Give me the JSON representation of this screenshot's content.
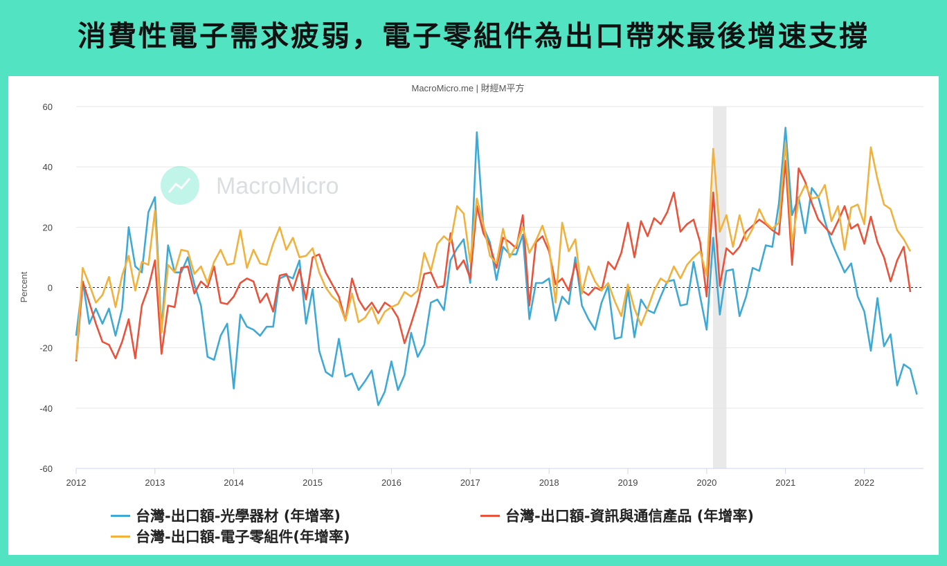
{
  "headline": "消費性電子需求疲弱，電子零組件為出口帶來最後增速支撐",
  "source": "MacroMicro.me | 財經M平方",
  "watermark": "MacroMicro",
  "chart_data": {
    "type": "line",
    "ylabel": "Percent",
    "ylim": [
      -60,
      60
    ],
    "yticks": [
      -60,
      -40,
      -20,
      0,
      20,
      40,
      60
    ],
    "xlim": [
      2012.0,
      2022.75
    ],
    "xticks": [
      "2012",
      "2013",
      "2014",
      "2015",
      "2016",
      "2017",
      "2018",
      "2019",
      "2020",
      "2021",
      "2022"
    ],
    "zero_line": "dashed",
    "shaded_period": [
      2020.08,
      2020.25
    ],
    "legend_position": "bottom",
    "series": [
      {
        "name": "台灣-出口額-光學器材 (年增率)",
        "color": "#3fa9d6",
        "x_start": 2012.0,
        "x_step": 0.08333,
        "values": [
          -16,
          2,
          -12,
          -7,
          -12,
          -7,
          -16,
          -7,
          20,
          7,
          5,
          25,
          30,
          -14,
          14,
          5,
          5,
          10,
          1,
          -6,
          -23,
          -24,
          -16,
          -12,
          -33.5,
          -9,
          -13,
          -14,
          -16,
          -13,
          -13,
          3,
          4,
          3,
          9,
          -12,
          -0.5,
          -21,
          -28,
          -29.5,
          -17,
          -29.5,
          -28.5,
          -34,
          -31,
          -27.5,
          -39,
          -34.5,
          -24.5,
          -34,
          -29,
          -15,
          -23,
          -19,
          -5,
          -4,
          -7.5,
          9,
          13,
          16,
          1.5,
          51.5,
          20,
          15,
          2.5,
          13.5,
          11,
          11,
          17.5,
          -10.5,
          1.5,
          1.5,
          3,
          -11,
          -3,
          -5.5,
          10,
          -6,
          -10.5,
          -14,
          -5,
          0.5,
          -17,
          -16.5,
          -0.5,
          -16.5,
          -4,
          -7.5,
          -8.5,
          -3,
          2,
          2.5,
          -6,
          -5.5,
          8.5,
          -3,
          -14,
          16.5,
          -9,
          5.5,
          6,
          -9.5,
          -3,
          6.5,
          5.5,
          14,
          13.5,
          28,
          53,
          24,
          30,
          18,
          33,
          30,
          22,
          15,
          10,
          5,
          8,
          -3,
          -8,
          -21,
          -3.5,
          -19.5,
          -15.5,
          -32.5,
          -25.5,
          -27,
          -35.5
        ]
      },
      {
        "name": "台灣-出口額-資訊與通信產品 (年增率)",
        "color": "#e9533b",
        "x_start": 2012.0,
        "x_step": 0.08333,
        "values": [
          -24.5,
          2,
          -5,
          -12,
          -18,
          -19,
          -23.5,
          -18,
          -10.5,
          -23.5,
          -6,
          0,
          9,
          -22,
          -6,
          -6.5,
          6.5,
          7,
          -2,
          2,
          0,
          7,
          -5,
          -5.5,
          -3,
          1.5,
          3,
          2,
          -5,
          -2,
          -8,
          4,
          4.5,
          -1,
          6,
          -4,
          10,
          11,
          5,
          1,
          -3,
          -11,
          3,
          -4,
          -7.5,
          -5,
          -8.5,
          -5,
          -6.5,
          -10,
          -18.5,
          -12,
          -5,
          4.5,
          5,
          0,
          0.5,
          18,
          6,
          9,
          3,
          27,
          18,
          14,
          6.5,
          16.5,
          15,
          13,
          24,
          -6,
          15,
          17,
          12,
          1,
          3,
          -1,
          8,
          -1,
          -2.5,
          0,
          -1,
          8.5,
          6,
          11.5,
          21.5,
          10,
          22,
          17,
          23,
          21,
          25,
          31.5,
          18.5,
          21,
          22.5,
          15,
          -3,
          31.5,
          0.5,
          13,
          11,
          13.5,
          18.5,
          20.5,
          22.5,
          21,
          19,
          17.5,
          42,
          7.5,
          39.5,
          35,
          28,
          22.5,
          20,
          17.5,
          22,
          27,
          19.5,
          21,
          14.5,
          23.5,
          15,
          10,
          2,
          9,
          13.5,
          -1.5
        ]
      },
      {
        "name": "台灣-出口額-電子零組件(年增率)",
        "color": "#f0b13d",
        "x_start": 2012.0,
        "x_step": 0.08333,
        "values": [
          -24,
          6.5,
          1,
          -5,
          -2.5,
          3.5,
          -6.5,
          4,
          10.5,
          -1,
          8.5,
          7.5,
          25.5,
          -15,
          7.5,
          5,
          12.5,
          12,
          4.5,
          7,
          1.5,
          8.5,
          12.5,
          7.5,
          8,
          19,
          6.5,
          12.5,
          8,
          7.5,
          14.5,
          20,
          12.5,
          16.5,
          10,
          10.5,
          13,
          5,
          0,
          -3,
          -5,
          -11,
          -2,
          -11.5,
          -10,
          -6.5,
          -12,
          -8,
          -6.5,
          -5.5,
          -1.5,
          -3,
          -1,
          11.5,
          5.5,
          14.5,
          17,
          15,
          27,
          24.5,
          8.5,
          29.5,
          21,
          10.5,
          8,
          19.5,
          10,
          14,
          20,
          11.5,
          15.5,
          20.5,
          13.5,
          -5,
          21.5,
          12,
          16,
          -2,
          7,
          2,
          -1,
          1.5,
          -4.5,
          -9.5,
          1,
          -7,
          -12.5,
          -7,
          -1,
          3,
          1.5,
          7,
          3,
          7.5,
          10,
          12,
          4,
          46,
          18.5,
          24,
          13.5,
          24,
          15.5,
          19.5,
          26,
          21.5,
          19.5,
          21.5,
          48,
          14.5,
          29.5,
          34,
          29.5,
          30,
          34,
          22,
          27,
          12.5,
          26.5,
          27.5,
          21,
          46.5,
          36,
          27.5,
          26,
          19,
          16,
          12
        ]
      }
    ]
  }
}
